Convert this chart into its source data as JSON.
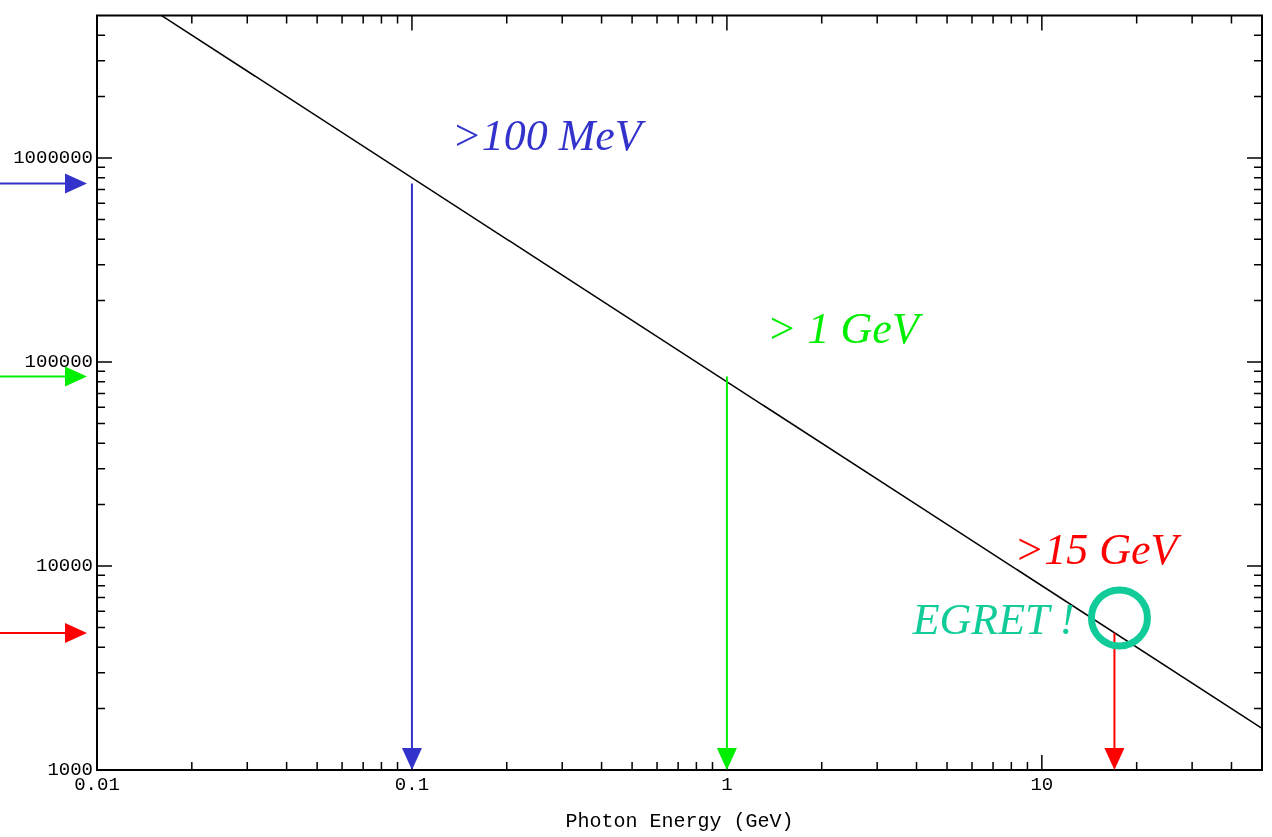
{
  "chart_data": {
    "type": "line",
    "xlabel": "Photon Energy (GeV)",
    "log": "xy",
    "grid": false,
    "legend": false,
    "marker": "none",
    "line_style": "solid",
    "xlim": [
      0.01,
      50
    ],
    "ylim": [
      1000,
      5000000
    ],
    "xticks": [
      0.01,
      {
        "value": 0.02,
        "label": null
      },
      {
        "value": 0.03,
        "label": null
      },
      {
        "value": 0.04,
        "label": null
      },
      {
        "value": 0.05,
        "label": null
      },
      {
        "value": 0.06,
        "label": null
      },
      {
        "value": 0.07,
        "label": null
      },
      {
        "value": 0.08,
        "label": null
      },
      {
        "value": 0.09,
        "label": null
      },
      0.1,
      {
        "value": 0.2,
        "label": null
      },
      {
        "value": 0.3,
        "label": null
      },
      {
        "value": 0.4,
        "label": null
      },
      {
        "value": 0.5,
        "label": null
      },
      {
        "value": 0.6,
        "label": null
      },
      {
        "value": 0.7,
        "label": null
      },
      {
        "value": 0.8,
        "label": null
      },
      {
        "value": 0.9,
        "label": null
      },
      1,
      {
        "value": 2,
        "label": null
      },
      {
        "value": 3,
        "label": null
      },
      {
        "value": 4,
        "label": null
      },
      {
        "value": 5,
        "label": null
      },
      {
        "value": 6,
        "label": null
      },
      {
        "value": 7,
        "label": null
      },
      {
        "value": 8,
        "label": null
      },
      {
        "value": 9,
        "label": null
      },
      10,
      {
        "value": 20,
        "label": null
      },
      {
        "value": 30,
        "label": null
      },
      {
        "value": 40,
        "label": null
      }
    ],
    "yticks": [
      1000,
      {
        "value": 2000,
        "label": null
      },
      {
        "value": 3000,
        "label": null
      },
      {
        "value": 4000,
        "label": null
      },
      {
        "value": 5000,
        "label": null
      },
      {
        "value": 6000,
        "label": null
      },
      {
        "value": 7000,
        "label": null
      },
      {
        "value": 8000,
        "label": null
      },
      {
        "value": 9000,
        "label": null
      },
      10000,
      {
        "value": 20000,
        "label": null
      },
      {
        "value": 30000,
        "label": null
      },
      {
        "value": 40000,
        "label": null
      },
      {
        "value": 50000,
        "label": null
      },
      {
        "value": 60000,
        "label": null
      },
      {
        "value": 70000,
        "label": null
      },
      {
        "value": 80000,
        "label": null
      },
      {
        "value": 90000,
        "label": null
      },
      100000,
      {
        "value": 200000,
        "label": null
      },
      {
        "value": 300000,
        "label": null
      },
      {
        "value": 400000,
        "label": null
      },
      {
        "value": 500000,
        "label": null
      },
      {
        "value": 600000,
        "label": null
      },
      {
        "value": 700000,
        "label": null
      },
      {
        "value": 800000,
        "label": null
      },
      {
        "value": 900000,
        "label": null
      },
      1000000,
      {
        "value": 2000000,
        "label": null
      },
      {
        "value": 3000000,
        "label": null
      },
      {
        "value": 4000000,
        "label": null
      }
    ],
    "series": [
      {
        "color": "#000000",
        "x": [
          0.016,
          50
        ],
        "values": [
          5000000,
          1600
        ]
      }
    ],
    "annotations": [
      {
        "text": ">100 MeV",
        "x": 0.1,
        "y": 750000
      },
      {
        "text": "> 1 GeV",
        "x": 1,
        "y": 85000
      },
      {
        "text": ">15 GeV",
        "x": 17,
        "y": 4700
      },
      "EGRET !"
    ]
  }
}
